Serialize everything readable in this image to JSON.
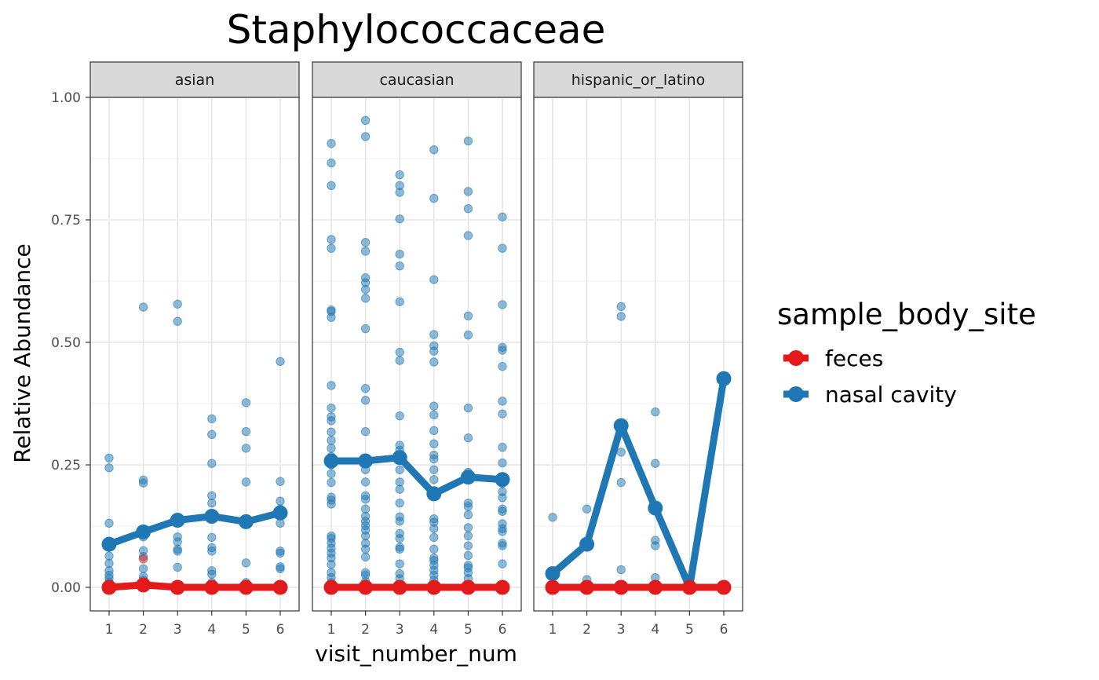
{
  "chart_data": {
    "type": "line",
    "title": "Staphylococcaceae",
    "xlabel": "visit_number_num",
    "ylabel": "Relative Abundance",
    "x_ticks": [
      "1",
      "2",
      "3",
      "4",
      "5",
      "6"
    ],
    "y_ticks": [
      "0.00",
      "0.25",
      "0.50",
      "0.75",
      "1.00"
    ],
    "xlim": [
      0.45,
      6.55
    ],
    "ylim": [
      -0.048,
      1.0
    ],
    "grid": true,
    "legend": {
      "title": "sample_body_site",
      "placement": "right",
      "entries": [
        {
          "label": "feces",
          "color": "#e31a1c"
        },
        {
          "label": "nasal cavity",
          "color": "#1f78b4"
        }
      ]
    },
    "facets": [
      {
        "label": "asian",
        "mean_lines": {
          "feces": [
            0.0,
            0.005,
            0.0,
            0.0,
            0.0,
            0.0
          ],
          "nasal cavity": [
            0.088,
            0.113,
            0.137,
            0.145,
            0.134,
            0.152
          ]
        },
        "points": {
          "nasal cavity": [
            [
              1,
              0.264
            ],
            [
              1,
              0.244
            ],
            [
              1,
              0.131
            ],
            [
              1,
              0.088
            ],
            [
              1,
              0.064
            ],
            [
              1,
              0.049
            ],
            [
              1,
              0.034
            ],
            [
              1,
              0.025
            ],
            [
              1,
              0.018
            ],
            [
              1,
              0.01
            ],
            [
              1,
              0.005
            ],
            [
              1,
              0.002
            ],
            [
              2,
              0.572
            ],
            [
              2,
              0.219
            ],
            [
              2,
              0.213
            ],
            [
              2,
              0.114
            ],
            [
              2,
              0.103
            ],
            [
              2,
              0.075
            ],
            [
              2,
              0.063
            ],
            [
              2,
              0.038
            ],
            [
              2,
              0.022
            ],
            [
              2,
              0.015
            ],
            [
              2,
              0.008
            ],
            [
              3,
              0.578
            ],
            [
              3,
              0.543
            ],
            [
              3,
              0.137
            ],
            [
              3,
              0.103
            ],
            [
              3,
              0.093
            ],
            [
              3,
              0.078
            ],
            [
              3,
              0.074
            ],
            [
              3,
              0.041
            ],
            [
              3,
              0.005
            ],
            [
              4,
              0.344
            ],
            [
              4,
              0.312
            ],
            [
              4,
              0.253
            ],
            [
              4,
              0.187
            ],
            [
              4,
              0.172
            ],
            [
              4,
              0.145
            ],
            [
              4,
              0.102
            ],
            [
              4,
              0.081
            ],
            [
              4,
              0.074
            ],
            [
              4,
              0.034
            ],
            [
              4,
              0.027
            ],
            [
              4,
              0.01
            ],
            [
              5,
              0.377
            ],
            [
              5,
              0.318
            ],
            [
              5,
              0.284
            ],
            [
              5,
              0.215
            ],
            [
              5,
              0.134
            ],
            [
              5,
              0.05
            ],
            [
              5,
              0.01
            ],
            [
              6,
              0.461
            ],
            [
              6,
              0.216
            ],
            [
              6,
              0.176
            ],
            [
              6,
              0.16
            ],
            [
              6,
              0.152
            ],
            [
              6,
              0.131
            ],
            [
              6,
              0.074
            ],
            [
              6,
              0.07
            ],
            [
              6,
              0.042
            ],
            [
              6,
              0.038
            ],
            [
              6,
              0.004
            ]
          ],
          "feces": [
            [
              2,
              0.058
            ],
            [
              1,
              0.0
            ],
            [
              3,
              0.0
            ],
            [
              4,
              0.0
            ],
            [
              5,
              0.0
            ],
            [
              6,
              0.0
            ]
          ]
        }
      },
      {
        "label": "caucasian",
        "mean_lines": {
          "feces": [
            0.0,
            0.0,
            0.0,
            0.0,
            0.0,
            0.0
          ],
          "nasal cavity": [
            0.258,
            0.258,
            0.265,
            0.191,
            0.225,
            0.22
          ]
        },
        "points": {
          "nasal cavity": [
            [
              1,
              0.906
            ],
            [
              1,
              0.866
            ],
            [
              1,
              0.82
            ],
            [
              1,
              0.71
            ],
            [
              1,
              0.692
            ],
            [
              1,
              0.566
            ],
            [
              1,
              0.563
            ],
            [
              1,
              0.551
            ],
            [
              1,
              0.412
            ],
            [
              1,
              0.366
            ],
            [
              1,
              0.348
            ],
            [
              1,
              0.34
            ],
            [
              1,
              0.317
            ],
            [
              1,
              0.3
            ],
            [
              1,
              0.284
            ],
            [
              1,
              0.267
            ],
            [
              1,
              0.25
            ],
            [
              1,
              0.232
            ],
            [
              1,
              0.214
            ],
            [
              1,
              0.184
            ],
            [
              1,
              0.178
            ],
            [
              1,
              0.17
            ],
            [
              1,
              0.105
            ],
            [
              1,
              0.1
            ],
            [
              1,
              0.09
            ],
            [
              1,
              0.08
            ],
            [
              1,
              0.07
            ],
            [
              1,
              0.06
            ],
            [
              1,
              0.047
            ],
            [
              1,
              0.03
            ],
            [
              1,
              0.02
            ],
            [
              1,
              0.01
            ],
            [
              1,
              0.004
            ],
            [
              2,
              0.953
            ],
            [
              2,
              0.92
            ],
            [
              2,
              0.704
            ],
            [
              2,
              0.686
            ],
            [
              2,
              0.632
            ],
            [
              2,
              0.622
            ],
            [
              2,
              0.608
            ],
            [
              2,
              0.59
            ],
            [
              2,
              0.528
            ],
            [
              2,
              0.406
            ],
            [
              2,
              0.382
            ],
            [
              2,
              0.318
            ],
            [
              2,
              0.258
            ],
            [
              2,
              0.24
            ],
            [
              2,
              0.215
            ],
            [
              2,
              0.187
            ],
            [
              2,
              0.18
            ],
            [
              2,
              0.16
            ],
            [
              2,
              0.145
            ],
            [
              2,
              0.135
            ],
            [
              2,
              0.126
            ],
            [
              2,
              0.117
            ],
            [
              2,
              0.105
            ],
            [
              2,
              0.09
            ],
            [
              2,
              0.078
            ],
            [
              2,
              0.062
            ],
            [
              2,
              0.03
            ],
            [
              2,
              0.025
            ],
            [
              2,
              0.012
            ],
            [
              2,
              0.004
            ],
            [
              3,
              0.842
            ],
            [
              3,
              0.82
            ],
            [
              3,
              0.806
            ],
            [
              3,
              0.752
            ],
            [
              3,
              0.68
            ],
            [
              3,
              0.656
            ],
            [
              3,
              0.583
            ],
            [
              3,
              0.48
            ],
            [
              3,
              0.463
            ],
            [
              3,
              0.35
            ],
            [
              3,
              0.29
            ],
            [
              3,
              0.28
            ],
            [
              3,
              0.265
            ],
            [
              3,
              0.24
            ],
            [
              3,
              0.215
            ],
            [
              3,
              0.2
            ],
            [
              3,
              0.172
            ],
            [
              3,
              0.144
            ],
            [
              3,
              0.135
            ],
            [
              3,
              0.11
            ],
            [
              3,
              0.1
            ],
            [
              3,
              0.082
            ],
            [
              3,
              0.078
            ],
            [
              3,
              0.048
            ],
            [
              3,
              0.028
            ],
            [
              3,
              0.018
            ],
            [
              3,
              0.005
            ],
            [
              4,
              0.893
            ],
            [
              4,
              0.794
            ],
            [
              4,
              0.628
            ],
            [
              4,
              0.516
            ],
            [
              4,
              0.493
            ],
            [
              4,
              0.482
            ],
            [
              4,
              0.46
            ],
            [
              4,
              0.37
            ],
            [
              4,
              0.352
            ],
            [
              4,
              0.32
            ],
            [
              4,
              0.293
            ],
            [
              4,
              0.27
            ],
            [
              4,
              0.262
            ],
            [
              4,
              0.24
            ],
            [
              4,
              0.22
            ],
            [
              4,
              0.191
            ],
            [
              4,
              0.14
            ],
            [
              4,
              0.133
            ],
            [
              4,
              0.12
            ],
            [
              4,
              0.102
            ],
            [
              4,
              0.078
            ],
            [
              4,
              0.06
            ],
            [
              4,
              0.055
            ],
            [
              4,
              0.045
            ],
            [
              4,
              0.035
            ],
            [
              4,
              0.025
            ],
            [
              4,
              0.015
            ],
            [
              4,
              0.005
            ],
            [
              5,
              0.911
            ],
            [
              5,
              0.808
            ],
            [
              5,
              0.773
            ],
            [
              5,
              0.718
            ],
            [
              5,
              0.554
            ],
            [
              5,
              0.515
            ],
            [
              5,
              0.366
            ],
            [
              5,
              0.305
            ],
            [
              5,
              0.235
            ],
            [
              5,
              0.225
            ],
            [
              5,
              0.172
            ],
            [
              5,
              0.165
            ],
            [
              5,
              0.148
            ],
            [
              5,
              0.122
            ],
            [
              5,
              0.105
            ],
            [
              5,
              0.085
            ],
            [
              5,
              0.065
            ],
            [
              5,
              0.045
            ],
            [
              5,
              0.04
            ],
            [
              5,
              0.03
            ],
            [
              5,
              0.018
            ],
            [
              5,
              0.006
            ],
            [
              6,
              0.756
            ],
            [
              6,
              0.692
            ],
            [
              6,
              0.577
            ],
            [
              6,
              0.49
            ],
            [
              6,
              0.484
            ],
            [
              6,
              0.451
            ],
            [
              6,
              0.38
            ],
            [
              6,
              0.354
            ],
            [
              6,
              0.286
            ],
            [
              6,
              0.254
            ],
            [
              6,
              0.22
            ],
            [
              6,
              0.212
            ],
            [
              6,
              0.195
            ],
            [
              6,
              0.183
            ],
            [
              6,
              0.16
            ],
            [
              6,
              0.155
            ],
            [
              6,
              0.13
            ],
            [
              6,
              0.12
            ],
            [
              6,
              0.114
            ],
            [
              6,
              0.09
            ],
            [
              6,
              0.085
            ],
            [
              6,
              0.048
            ]
          ],
          "feces": [
            [
              1,
              0.0
            ],
            [
              2,
              0.0
            ],
            [
              3,
              0.0
            ],
            [
              4,
              0.0
            ],
            [
              5,
              0.0
            ],
            [
              6,
              0.0
            ]
          ]
        }
      },
      {
        "label": "hispanic_or_latino",
        "mean_lines": {
          "feces": [
            0.0,
            0.0,
            0.0,
            0.0,
            0.0,
            0.0
          ],
          "nasal cavity": [
            0.028,
            0.088,
            0.33,
            0.162,
            0.0,
            0.426
          ]
        },
        "points": {
          "nasal cavity": [
            [
              1,
              0.143
            ],
            [
              1,
              0.028
            ],
            [
              2,
              0.16
            ],
            [
              2,
              0.088
            ],
            [
              2,
              0.016
            ],
            [
              3,
              0.573
            ],
            [
              3,
              0.553
            ],
            [
              3,
              0.33
            ],
            [
              3,
              0.276
            ],
            [
              3,
              0.214
            ],
            [
              3,
              0.036
            ],
            [
              4,
              0.358
            ],
            [
              4,
              0.253
            ],
            [
              4,
              0.162
            ],
            [
              4,
              0.096
            ],
            [
              4,
              0.085
            ],
            [
              4,
              0.02
            ],
            [
              5,
              0.0
            ],
            [
              6,
              0.426
            ]
          ],
          "feces": [
            [
              1,
              0.0
            ],
            [
              2,
              0.0
            ],
            [
              3,
              0.0
            ],
            [
              4,
              0.0
            ],
            [
              5,
              0.0
            ],
            [
              6,
              0.0
            ]
          ]
        }
      }
    ]
  }
}
